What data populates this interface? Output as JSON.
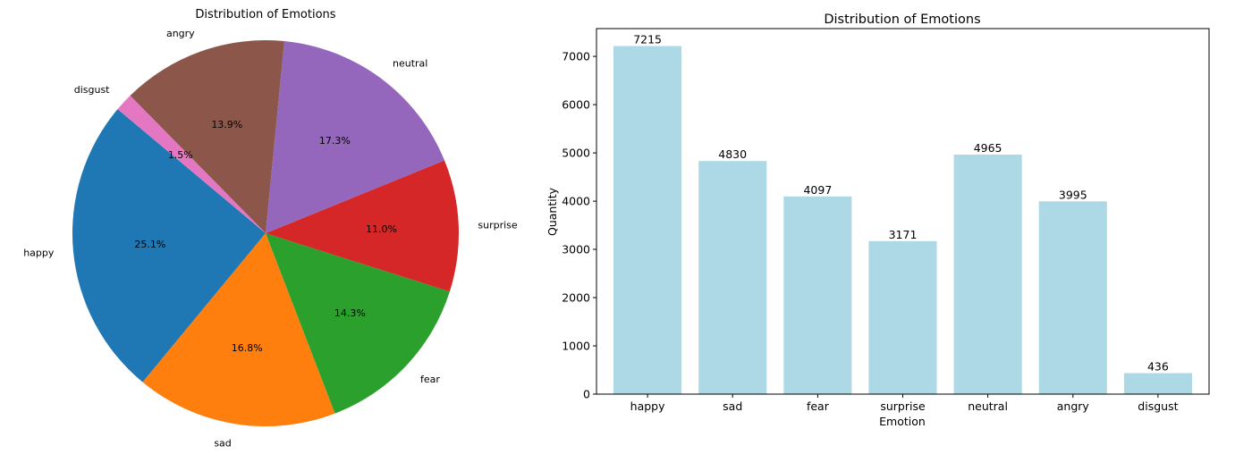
{
  "chart_data": [
    {
      "type": "pie",
      "title": "Distribution of Emotions",
      "categories": [
        "happy",
        "sad",
        "fear",
        "surprise",
        "neutral",
        "angry",
        "disgust"
      ],
      "values": [
        7215,
        4830,
        4097,
        3171,
        4965,
        3995,
        436
      ],
      "percent_labels": [
        "25.1%",
        "16.8%",
        "14.3%",
        "11.0%",
        "17.3%",
        "13.9%",
        "1.5%"
      ],
      "colors": [
        "#1f77b4",
        "#ff7f0e",
        "#2ca02c",
        "#d62728",
        "#9467bd",
        "#8c564b",
        "#e377c2"
      ],
      "start_angle_deg": 140,
      "direction": "counterclockwise"
    },
    {
      "type": "bar",
      "title": "Distribution of Emotions",
      "categories": [
        "happy",
        "sad",
        "fear",
        "surprise",
        "neutral",
        "angry",
        "disgust"
      ],
      "values": [
        7215,
        4830,
        4097,
        3171,
        4965,
        3995,
        436
      ],
      "xlabel": "Emotion",
      "ylabel": "Quantity",
      "ylim": [
        0,
        7576
      ],
      "yticks": [
        0,
        1000,
        2000,
        3000,
        4000,
        5000,
        6000,
        7000
      ],
      "bar_color": "#add8e6",
      "grid": false,
      "data_labels": true
    }
  ]
}
